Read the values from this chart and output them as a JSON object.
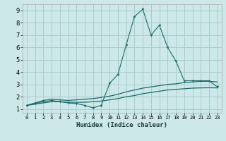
{
  "xlabel": "Humidex (Indice chaleur)",
  "bg_color": "#cce8e8",
  "grid_color": "#aacccc",
  "line_color": "#1a6b6b",
  "x_ticks": [
    0,
    1,
    2,
    3,
    4,
    5,
    6,
    7,
    8,
    9,
    10,
    11,
    12,
    13,
    14,
    15,
    16,
    17,
    18,
    19,
    20,
    21,
    22,
    23
  ],
  "y_ticks": [
    1,
    2,
    3,
    4,
    5,
    6,
    7,
    8,
    9
  ],
  "xlim": [
    -0.5,
    23.5
  ],
  "ylim": [
    0.7,
    9.5
  ],
  "curve1_x": [
    0,
    1,
    2,
    3,
    4,
    5,
    6,
    7,
    8,
    9,
    10,
    11,
    12,
    13,
    14,
    15,
    16,
    17,
    18,
    19,
    20,
    21,
    22,
    23
  ],
  "curve1_y": [
    1.3,
    1.45,
    1.6,
    1.7,
    1.6,
    1.5,
    1.45,
    1.3,
    1.1,
    1.3,
    3.1,
    3.8,
    6.2,
    8.5,
    9.1,
    7.0,
    7.8,
    6.0,
    4.9,
    3.3,
    3.3,
    3.3,
    3.3,
    2.8
  ],
  "curve2_x": [
    0,
    1,
    2,
    3,
    4,
    5,
    6,
    7,
    8,
    9,
    10,
    11,
    12,
    13,
    14,
    15,
    16,
    17,
    18,
    19,
    20,
    21,
    22,
    23
  ],
  "curve2_y": [
    1.3,
    1.5,
    1.7,
    1.8,
    1.75,
    1.7,
    1.75,
    1.8,
    1.85,
    1.95,
    2.05,
    2.2,
    2.4,
    2.55,
    2.7,
    2.8,
    2.9,
    3.0,
    3.05,
    3.15,
    3.2,
    3.25,
    3.25,
    3.2
  ],
  "curve3_x": [
    0,
    1,
    2,
    3,
    4,
    5,
    6,
    7,
    8,
    9,
    10,
    11,
    12,
    13,
    14,
    15,
    16,
    17,
    18,
    19,
    20,
    21,
    22,
    23
  ],
  "curve3_y": [
    1.3,
    1.4,
    1.5,
    1.6,
    1.6,
    1.55,
    1.55,
    1.55,
    1.6,
    1.65,
    1.75,
    1.85,
    2.0,
    2.1,
    2.25,
    2.35,
    2.45,
    2.55,
    2.6,
    2.65,
    2.7,
    2.72,
    2.73,
    2.72
  ]
}
